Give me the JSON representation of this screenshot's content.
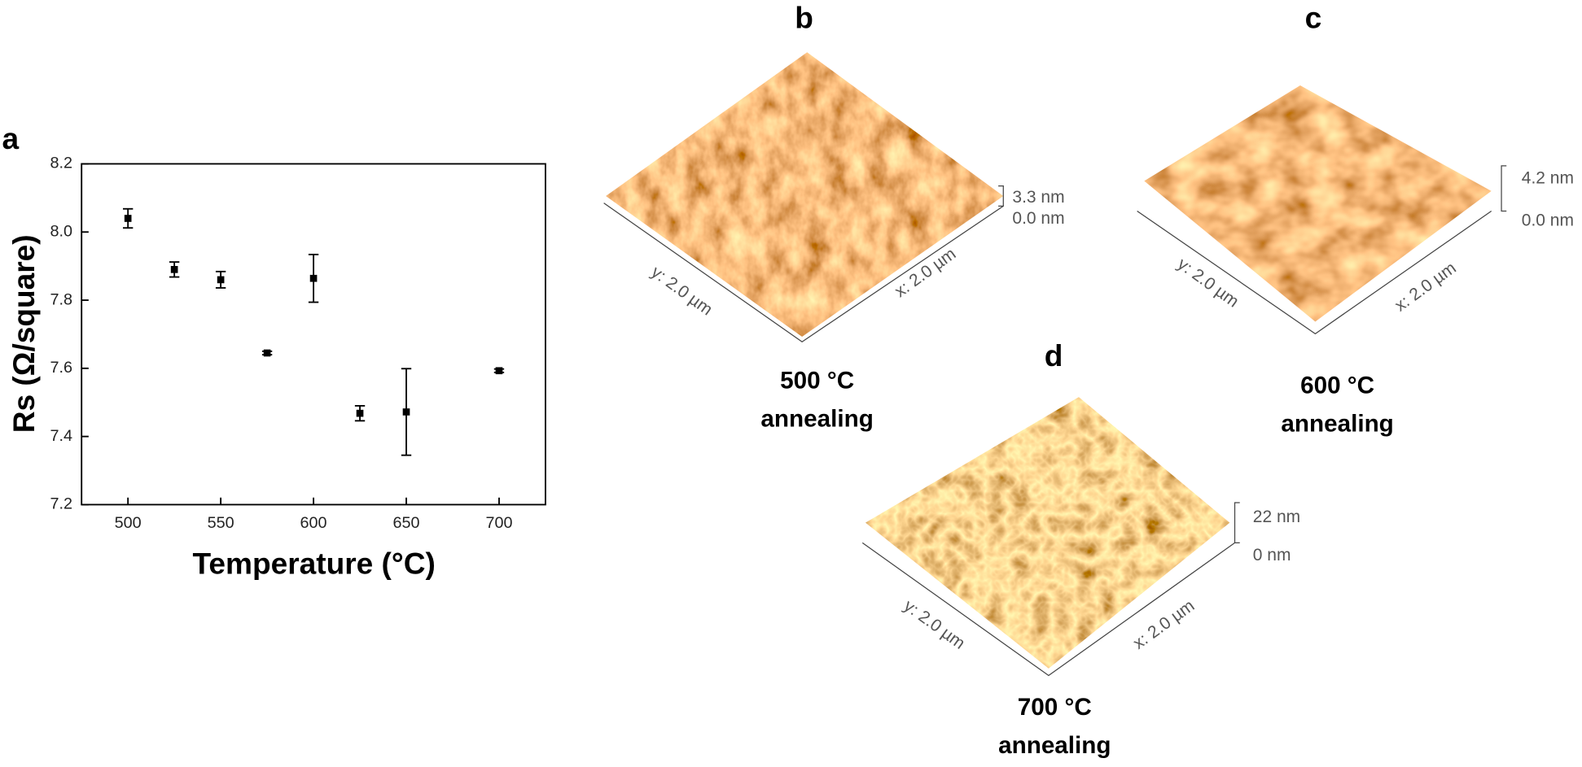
{
  "chart_data": {
    "type": "scatter",
    "x": [
      500,
      525,
      550,
      575,
      600,
      625,
      650,
      700
    ],
    "values": [
      8.04,
      7.89,
      7.86,
      7.645,
      7.864,
      7.468,
      7.472,
      7.593
    ],
    "errors": [
      0.028,
      0.022,
      0.024,
      0.005,
      0.07,
      0.022,
      0.127,
      0.005
    ],
    "color": "#000000",
    "xlabel": "Temperature (°C)",
    "ylabel": "Rs (Ω/square)",
    "xlim": [
      475,
      725
    ],
    "ylim": [
      7.2,
      8.2
    ],
    "xticks": [
      500,
      550,
      600,
      650,
      700
    ],
    "yticks": [
      7.2,
      7.4,
      7.6,
      7.8,
      {
        "value": 8,
        "label": "8.0"
      },
      8.2
    ],
    "grid": false,
    "panel_label": "a"
  },
  "afm_panels": [
    {
      "label": "b",
      "z_max": "3.3 nm",
      "z_min": "0.0 nm",
      "y_axis": "y: 2.0 µm",
      "x_axis": "x: 2.0 µm",
      "caption": [
        "500 °C",
        "annealing"
      ]
    },
    {
      "label": "c",
      "z_max": "4.2 nm",
      "z_min": "0.0 nm",
      "y_axis": "y: 2.0 µm",
      "x_axis": "x: 2.0 µm",
      "caption": [
        "600 °C",
        "annealing"
      ]
    },
    {
      "label": "d",
      "z_max": "22 nm",
      "z_min": "0 nm",
      "y_axis": "y: 2.0 µm",
      "x_axis": "x: 2.0 µm",
      "caption": [
        "700 °C",
        "annealing"
      ]
    }
  ]
}
